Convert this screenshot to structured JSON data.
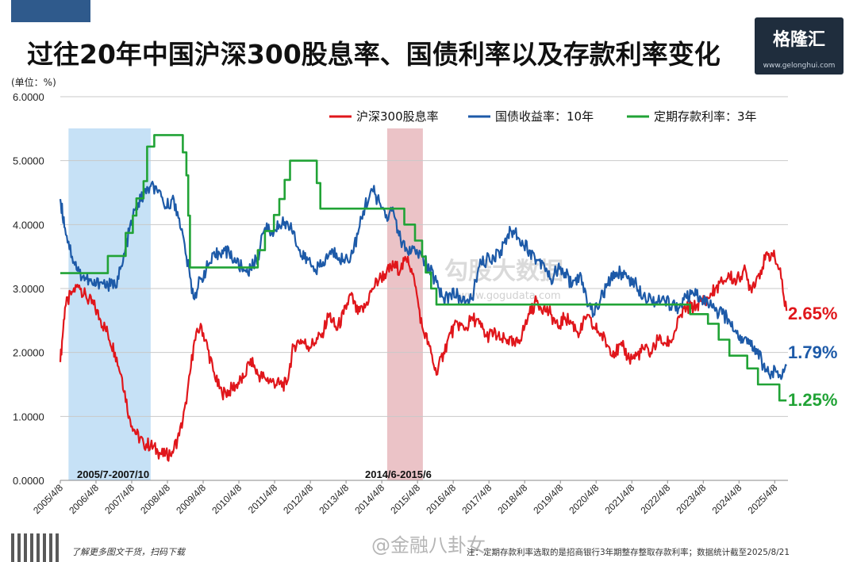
{
  "title": "过往20年中国沪深300股息率、国债利率以及存款利率变化",
  "logo": {
    "name": "格隆汇",
    "url": "www.gelonghui.com"
  },
  "watermark": {
    "text": "勾股大数据",
    "url": "www.gogudata.com",
    "weibo": "@金融八卦女"
  },
  "footer": {
    "left": "了解更多图文干货，扫码下载",
    "note": "注：定期存款利率选取的是招商银行3年期整存整取存款利率；数据统计截至2025/8/21"
  },
  "chart_data": {
    "type": "line",
    "unit_label": "(单位：%)",
    "ylim": [
      0,
      6
    ],
    "y_ticks": [
      "0.0000",
      "1.0000",
      "2.0000",
      "3.0000",
      "4.0000",
      "5.0000",
      "6.0000"
    ],
    "x_ticks": [
      "2005/4/8",
      "2006/4/8",
      "2007/4/8",
      "2008/4/8",
      "2009/4/8",
      "2010/4/8",
      "2011/4/8",
      "2012/4/8",
      "2013/4/8",
      "2014/4/8",
      "2015/4/8",
      "2016/4/8",
      "2017/4/8",
      "2018/4/8",
      "2019/4/8",
      "2020/4/8",
      "2021/4/8",
      "2022/4/8",
      "2023/4/8",
      "2024/4/8",
      "2025/4/8"
    ],
    "xlim": [
      2005.27,
      2025.64
    ],
    "grid": "horizontal",
    "legend_position": "top-right",
    "shaded_periods": [
      {
        "label": "2005/7-2007/10",
        "start": 2005.5,
        "end": 2007.8,
        "color": "#bcdcf5"
      },
      {
        "label": "2014/6-2015/6",
        "start": 2014.42,
        "end": 2015.42,
        "color": "#e8b9bd"
      }
    ],
    "series": [
      {
        "name": "沪深300股息率",
        "color": "#e0161b",
        "end_label": "2.65%",
        "points": [
          [
            2005.27,
            1.85
          ],
          [
            2005.4,
            2.7
          ],
          [
            2005.6,
            2.95
          ],
          [
            2005.8,
            3.05
          ],
          [
            2006.0,
            2.85
          ],
          [
            2006.2,
            2.75
          ],
          [
            2006.4,
            2.5
          ],
          [
            2006.6,
            2.3
          ],
          [
            2006.8,
            2.0
          ],
          [
            2007.0,
            1.6
          ],
          [
            2007.2,
            1.0
          ],
          [
            2007.4,
            0.72
          ],
          [
            2007.6,
            0.58
          ],
          [
            2007.8,
            0.55
          ],
          [
            2008.0,
            0.45
          ],
          [
            2008.2,
            0.38
          ],
          [
            2008.4,
            0.45
          ],
          [
            2008.6,
            0.7
          ],
          [
            2008.8,
            1.2
          ],
          [
            2009.0,
            2.1
          ],
          [
            2009.2,
            2.45
          ],
          [
            2009.4,
            2.05
          ],
          [
            2009.6,
            1.6
          ],
          [
            2009.8,
            1.35
          ],
          [
            2010.0,
            1.4
          ],
          [
            2010.2,
            1.5
          ],
          [
            2010.4,
            1.6
          ],
          [
            2010.6,
            1.9
          ],
          [
            2010.8,
            1.65
          ],
          [
            2011.0,
            1.6
          ],
          [
            2011.2,
            1.55
          ],
          [
            2011.4,
            1.5
          ],
          [
            2011.6,
            1.5
          ],
          [
            2011.8,
            2.1
          ],
          [
            2012.0,
            2.2
          ],
          [
            2012.2,
            2.1
          ],
          [
            2012.4,
            2.15
          ],
          [
            2012.6,
            2.3
          ],
          [
            2012.8,
            2.6
          ],
          [
            2013.0,
            2.35
          ],
          [
            2013.2,
            2.6
          ],
          [
            2013.4,
            2.9
          ],
          [
            2013.6,
            2.6
          ],
          [
            2013.8,
            2.7
          ],
          [
            2014.0,
            3.0
          ],
          [
            2014.2,
            3.15
          ],
          [
            2014.4,
            3.25
          ],
          [
            2014.6,
            3.35
          ],
          [
            2014.8,
            3.3
          ],
          [
            2015.0,
            3.5
          ],
          [
            2015.2,
            3.05
          ],
          [
            2015.4,
            2.4
          ],
          [
            2015.6,
            2.1
          ],
          [
            2015.8,
            1.65
          ],
          [
            2016.0,
            2.0
          ],
          [
            2016.2,
            2.3
          ],
          [
            2016.4,
            2.45
          ],
          [
            2016.6,
            2.35
          ],
          [
            2016.8,
            2.55
          ],
          [
            2017.0,
            2.45
          ],
          [
            2017.2,
            2.25
          ],
          [
            2017.4,
            2.3
          ],
          [
            2017.6,
            2.2
          ],
          [
            2017.8,
            2.2
          ],
          [
            2018.0,
            2.1
          ],
          [
            2018.2,
            2.3
          ],
          [
            2018.4,
            2.6
          ],
          [
            2018.6,
            2.8
          ],
          [
            2018.8,
            2.7
          ],
          [
            2019.0,
            2.6
          ],
          [
            2019.2,
            2.4
          ],
          [
            2019.4,
            2.55
          ],
          [
            2019.6,
            2.45
          ],
          [
            2019.8,
            2.3
          ],
          [
            2020.0,
            2.55
          ],
          [
            2020.2,
            2.4
          ],
          [
            2020.4,
            2.3
          ],
          [
            2020.6,
            2.1
          ],
          [
            2020.8,
            2.0
          ],
          [
            2021.0,
            2.1
          ],
          [
            2021.2,
            1.9
          ],
          [
            2021.4,
            1.95
          ],
          [
            2021.6,
            2.05
          ],
          [
            2021.8,
            2.0
          ],
          [
            2022.0,
            2.2
          ],
          [
            2022.2,
            2.15
          ],
          [
            2022.4,
            2.2
          ],
          [
            2022.6,
            2.55
          ],
          [
            2022.8,
            2.7
          ],
          [
            2023.0,
            2.7
          ],
          [
            2023.2,
            2.8
          ],
          [
            2023.4,
            2.85
          ],
          [
            2023.6,
            3.0
          ],
          [
            2023.8,
            3.1
          ],
          [
            2024.0,
            3.2
          ],
          [
            2024.2,
            3.1
          ],
          [
            2024.4,
            3.3
          ],
          [
            2024.6,
            3.0
          ],
          [
            2024.8,
            3.2
          ],
          [
            2025.0,
            3.45
          ],
          [
            2025.2,
            3.55
          ],
          [
            2025.4,
            3.3
          ],
          [
            2025.6,
            2.65
          ]
        ]
      },
      {
        "name": "国债收益率：10年",
        "color": "#1d5aa8",
        "end_label": "1.79%",
        "points": [
          [
            2005.27,
            4.4
          ],
          [
            2005.4,
            3.95
          ],
          [
            2005.6,
            3.5
          ],
          [
            2005.8,
            3.25
          ],
          [
            2006.0,
            3.15
          ],
          [
            2006.2,
            3.05
          ],
          [
            2006.4,
            3.1
          ],
          [
            2006.6,
            3.05
          ],
          [
            2006.8,
            3.05
          ],
          [
            2007.0,
            3.35
          ],
          [
            2007.2,
            3.9
          ],
          [
            2007.4,
            4.3
          ],
          [
            2007.6,
            4.45
          ],
          [
            2007.8,
            4.6
          ],
          [
            2008.0,
            4.5
          ],
          [
            2008.2,
            4.25
          ],
          [
            2008.4,
            4.4
          ],
          [
            2008.6,
            4.1
          ],
          [
            2008.8,
            3.5
          ],
          [
            2009.0,
            2.85
          ],
          [
            2009.2,
            3.15
          ],
          [
            2009.4,
            3.35
          ],
          [
            2009.6,
            3.5
          ],
          [
            2009.8,
            3.6
          ],
          [
            2010.0,
            3.55
          ],
          [
            2010.2,
            3.4
          ],
          [
            2010.4,
            3.3
          ],
          [
            2010.6,
            3.3
          ],
          [
            2010.8,
            3.5
          ],
          [
            2011.0,
            3.95
          ],
          [
            2011.2,
            3.9
          ],
          [
            2011.4,
            4.0
          ],
          [
            2011.6,
            4.05
          ],
          [
            2011.8,
            3.9
          ],
          [
            2012.0,
            3.5
          ],
          [
            2012.2,
            3.45
          ],
          [
            2012.4,
            3.3
          ],
          [
            2012.6,
            3.35
          ],
          [
            2012.8,
            3.55
          ],
          [
            2013.0,
            3.55
          ],
          [
            2013.2,
            3.45
          ],
          [
            2013.4,
            3.5
          ],
          [
            2013.6,
            3.85
          ],
          [
            2013.8,
            4.3
          ],
          [
            2014.0,
            4.55
          ],
          [
            2014.2,
            4.35
          ],
          [
            2014.4,
            4.15
          ],
          [
            2014.6,
            4.2
          ],
          [
            2014.8,
            3.75
          ],
          [
            2015.0,
            3.55
          ],
          [
            2015.2,
            3.6
          ],
          [
            2015.4,
            3.5
          ],
          [
            2015.6,
            3.3
          ],
          [
            2015.8,
            3.1
          ],
          [
            2016.0,
            2.85
          ],
          [
            2016.2,
            2.9
          ],
          [
            2016.4,
            2.9
          ],
          [
            2016.6,
            2.75
          ],
          [
            2016.8,
            2.85
          ],
          [
            2017.0,
            3.35
          ],
          [
            2017.2,
            3.45
          ],
          [
            2017.4,
            3.5
          ],
          [
            2017.6,
            3.6
          ],
          [
            2017.8,
            3.85
          ],
          [
            2018.0,
            3.9
          ],
          [
            2018.2,
            3.75
          ],
          [
            2018.4,
            3.6
          ],
          [
            2018.6,
            3.45
          ],
          [
            2018.8,
            3.4
          ],
          [
            2019.0,
            3.15
          ],
          [
            2019.2,
            3.3
          ],
          [
            2019.4,
            3.25
          ],
          [
            2019.6,
            3.05
          ],
          [
            2019.8,
            3.2
          ],
          [
            2020.0,
            2.85
          ],
          [
            2020.2,
            2.6
          ],
          [
            2020.4,
            2.85
          ],
          [
            2020.6,
            3.05
          ],
          [
            2020.8,
            3.25
          ],
          [
            2021.0,
            3.25
          ],
          [
            2021.2,
            3.15
          ],
          [
            2021.4,
            3.05
          ],
          [
            2021.6,
            2.9
          ],
          [
            2021.8,
            2.85
          ],
          [
            2022.0,
            2.8
          ],
          [
            2022.2,
            2.8
          ],
          [
            2022.4,
            2.75
          ],
          [
            2022.6,
            2.7
          ],
          [
            2022.8,
            2.85
          ],
          [
            2023.0,
            2.9
          ],
          [
            2023.2,
            2.85
          ],
          [
            2023.4,
            2.75
          ],
          [
            2023.6,
            2.65
          ],
          [
            2023.8,
            2.6
          ],
          [
            2024.0,
            2.5
          ],
          [
            2024.2,
            2.3
          ],
          [
            2024.4,
            2.2
          ],
          [
            2024.6,
            2.1
          ],
          [
            2024.8,
            2.05
          ],
          [
            2025.0,
            1.7
          ],
          [
            2025.2,
            1.7
          ],
          [
            2025.4,
            1.65
          ],
          [
            2025.6,
            1.79
          ]
        ]
      },
      {
        "name": "定期存款利率：3年",
        "color": "#21a336",
        "end_label": "1.25%",
        "points": [
          [
            2005.27,
            3.24
          ],
          [
            2006.6,
            3.24
          ],
          [
            2006.6,
            3.51
          ],
          [
            2007.1,
            3.51
          ],
          [
            2007.1,
            3.87
          ],
          [
            2007.3,
            3.87
          ],
          [
            2007.3,
            4.14
          ],
          [
            2007.4,
            4.14
          ],
          [
            2007.4,
            4.41
          ],
          [
            2007.6,
            4.41
          ],
          [
            2007.6,
            4.68
          ],
          [
            2007.7,
            4.68
          ],
          [
            2007.7,
            5.22
          ],
          [
            2007.9,
            5.22
          ],
          [
            2007.9,
            5.4
          ],
          [
            2008.7,
            5.4
          ],
          [
            2008.7,
            5.13
          ],
          [
            2008.8,
            5.13
          ],
          [
            2008.8,
            4.77
          ],
          [
            2008.85,
            4.77
          ],
          [
            2008.85,
            4.14
          ],
          [
            2008.9,
            4.14
          ],
          [
            2008.9,
            3.33
          ],
          [
            2010.8,
            3.33
          ],
          [
            2010.8,
            3.6
          ],
          [
            2011.0,
            3.6
          ],
          [
            2011.0,
            3.9
          ],
          [
            2011.25,
            3.9
          ],
          [
            2011.25,
            4.15
          ],
          [
            2011.4,
            4.15
          ],
          [
            2011.4,
            4.4
          ],
          [
            2011.55,
            4.4
          ],
          [
            2011.55,
            4.7
          ],
          [
            2011.7,
            4.7
          ],
          [
            2011.7,
            5.0
          ],
          [
            2012.45,
            5.0
          ],
          [
            2012.45,
            4.65
          ],
          [
            2012.55,
            4.65
          ],
          [
            2012.55,
            4.25
          ],
          [
            2014.9,
            4.25
          ],
          [
            2014.9,
            4.0
          ],
          [
            2015.2,
            4.0
          ],
          [
            2015.2,
            3.75
          ],
          [
            2015.4,
            3.75
          ],
          [
            2015.4,
            3.5
          ],
          [
            2015.5,
            3.5
          ],
          [
            2015.5,
            3.25
          ],
          [
            2015.65,
            3.25
          ],
          [
            2015.65,
            3.0
          ],
          [
            2015.8,
            3.0
          ],
          [
            2015.8,
            2.75
          ],
          [
            2022.9,
            2.75
          ],
          [
            2022.9,
            2.6
          ],
          [
            2023.4,
            2.6
          ],
          [
            2023.4,
            2.45
          ],
          [
            2023.7,
            2.45
          ],
          [
            2023.7,
            2.2
          ],
          [
            2024.0,
            2.2
          ],
          [
            2024.0,
            1.95
          ],
          [
            2024.5,
            1.95
          ],
          [
            2024.5,
            1.75
          ],
          [
            2024.8,
            1.75
          ],
          [
            2024.8,
            1.5
          ],
          [
            2025.4,
            1.5
          ],
          [
            2025.4,
            1.25
          ],
          [
            2025.6,
            1.25
          ]
        ]
      }
    ]
  }
}
